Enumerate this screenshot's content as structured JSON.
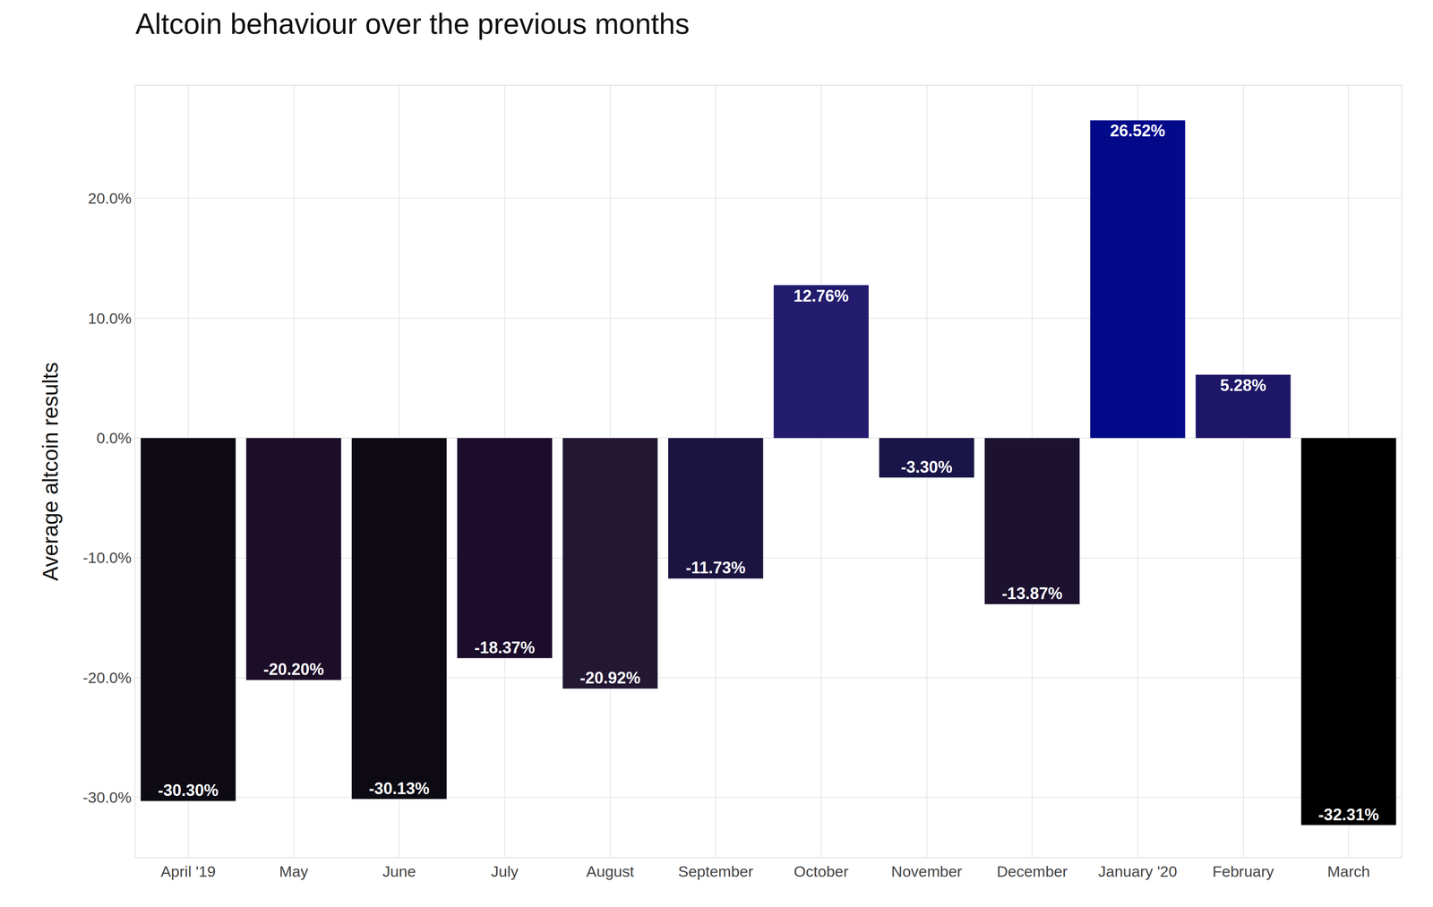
{
  "chart_data": {
    "type": "bar",
    "title": "Altcoin behaviour over the previous months",
    "y_label": "Average altcoin results",
    "categories": [
      "April '19",
      "May",
      "June",
      "July",
      "August",
      "September",
      "October",
      "November",
      "December",
      "January '20",
      "February",
      "March"
    ],
    "values": [
      -30.3,
      -20.2,
      -30.13,
      -18.37,
      -20.92,
      -11.73,
      12.76,
      -3.3,
      -13.87,
      26.52,
      5.28,
      -32.31
    ],
    "value_labels": [
      "-30.30%",
      "-20.20%",
      "-30.13%",
      "-18.37%",
      "-20.92%",
      "-11.73%",
      "12.76%",
      "-3.30%",
      "-13.87%",
      "26.52%",
      "5.28%",
      "-32.31%"
    ],
    "colors": [
      "#0d0a14",
      "#1c0e28",
      "#0d0a14",
      "#1b0d2b",
      "#231833",
      "#1c1440",
      "#231c6e",
      "#1a1548",
      "#1c1230",
      "#020a8a",
      "#1e1666",
      "#000000"
    ],
    "ylim": [
      -35,
      29.4
    ],
    "yticks": [
      {
        "value": -30,
        "label": "-30.0%"
      },
      {
        "value": -20,
        "label": "-20.0%"
      },
      {
        "value": -10,
        "label": "-10.0%"
      },
      {
        "value": 0,
        "label": "0.0%"
      },
      {
        "value": 10,
        "label": "10.0%"
      },
      {
        "value": 20,
        "label": "20.0%"
      }
    ],
    "grid": true,
    "data_labels": true
  }
}
